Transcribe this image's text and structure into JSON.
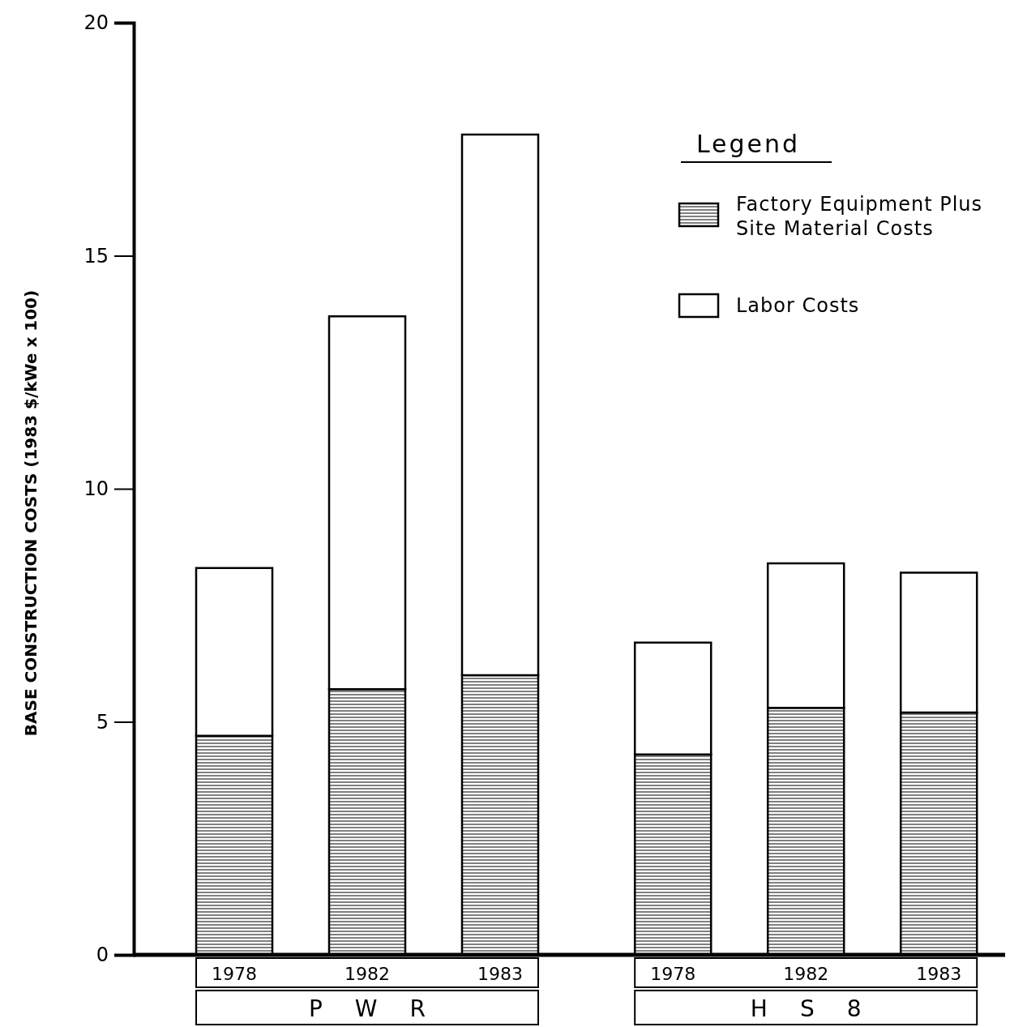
{
  "chart_data": {
    "type": "bar",
    "stacked": true,
    "ylabel": "BASE CONSTRUCTION COSTS (1983 $/kWe x 100)",
    "categories": [
      "1978",
      "1982",
      "1983",
      "1978",
      "1982",
      "1983"
    ],
    "series": [
      {
        "name": "Factory Equipment Plus Site Material Costs",
        "color": "#000000",
        "values": [
          4.7,
          5.7,
          6.0,
          4.3,
          5.3,
          5.2
        ]
      },
      {
        "name": "Labor Costs",
        "color": "#ffffff",
        "values": [
          3.6,
          8.0,
          11.6,
          2.4,
          3.1,
          3.0
        ]
      }
    ],
    "ylim": [
      0,
      20
    ],
    "yticks": [
      0,
      5,
      10,
      15,
      20
    ],
    "grid": false,
    "legend": "top right",
    "legend_title": "Legend",
    "annotations": [
      "PWR",
      "HS8"
    ]
  }
}
